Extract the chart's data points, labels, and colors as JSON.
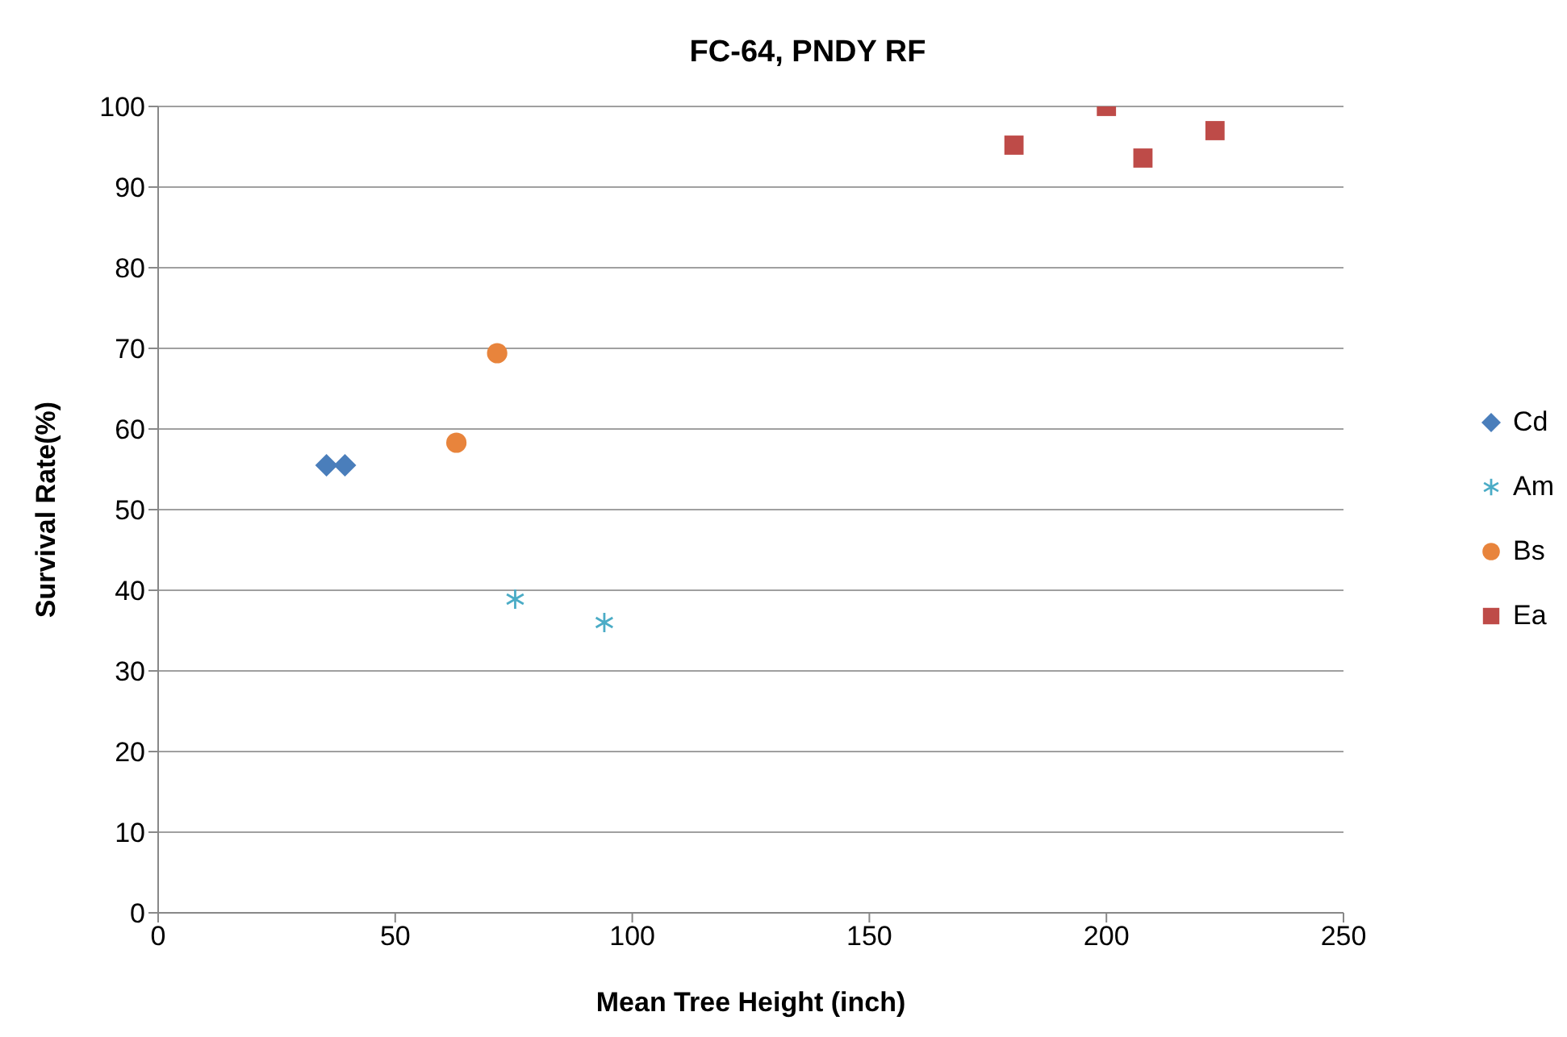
{
  "chart_data": {
    "type": "scatter",
    "title": "FC-64, PNDY RF",
    "xlabel": "Mean Tree Height (inch)",
    "ylabel": "Survival Rate(%)",
    "xlim": [
      0,
      250
    ],
    "xticks": [
      0,
      50,
      100,
      150,
      200,
      250
    ],
    "ylim": [
      0,
      100
    ],
    "yticks": [
      0,
      10,
      20,
      30,
      40,
      50,
      60,
      70,
      80,
      90,
      100
    ],
    "grid": "y",
    "legend": "right",
    "series": [
      {
        "name": "Cd",
        "color": "#4a7ebb",
        "marker": "diamond",
        "x": [
          35.5,
          39.4
        ],
        "values": [
          55.5,
          55.5
        ]
      },
      {
        "name": "Am",
        "color": "#4bacc6",
        "marker": "cross",
        "x": [
          75.3,
          94.1
        ],
        "values": [
          38.9,
          36.0
        ]
      },
      {
        "name": "Bs",
        "color": "#e8843c",
        "marker": "circle",
        "x": [
          62.9,
          71.5
        ],
        "values": [
          58.3,
          69.4
        ]
      },
      {
        "name": "Ea",
        "color": "#be4b48",
        "marker": "square",
        "x": [
          180.5,
          200,
          207.7,
          222.9
        ],
        "values": [
          95.2,
          100,
          93.6,
          97
        ]
      }
    ]
  }
}
